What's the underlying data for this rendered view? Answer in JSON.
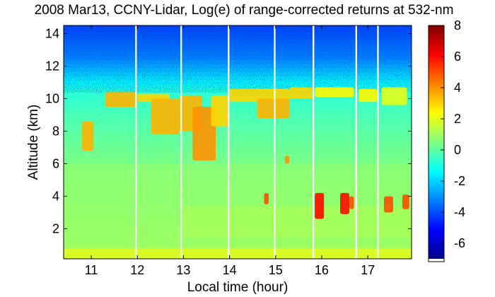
{
  "chart_data": {
    "type": "heatmap",
    "title": "2008 Mar13, CCNY-Lidar, Log(e) of range-corrected returns at 532-nm",
    "xlabel": "Local time (hour)",
    "ylabel": "Altitude (km)",
    "xlim": [
      10.4,
      17.95
    ],
    "ylim": [
      0.15,
      14.5
    ],
    "x_ticks": [
      11,
      12,
      13,
      14,
      15,
      16,
      17
    ],
    "y_ticks": [
      2,
      4,
      6,
      8,
      10,
      12,
      14
    ],
    "colorbar": {
      "range": [
        -7,
        8
      ],
      "ticks": [
        8,
        6,
        4,
        2,
        0,
        -2,
        -4,
        -6
      ],
      "colors": [
        "#00008f",
        "#0000ff",
        "#0080ff",
        "#00ffff",
        "#80ff80",
        "#ffff00",
        "#ff8000",
        "#ff0000",
        "#800000"
      ]
    },
    "data_gaps_hour": [
      11.97,
      12.95,
      13.98,
      14.98,
      15.82,
      16.75,
      17.22
    ],
    "cloud_layers": [
      {
        "x": [
          10.8,
          11.05
        ],
        "y": [
          6.8,
          8.6
        ],
        "value": 3.5
      },
      {
        "x": [
          11.3,
          12.0
        ],
        "y": [
          9.5,
          10.4
        ],
        "value": 3.5
      },
      {
        "x": [
          12.0,
          12.7
        ],
        "y": [
          9.8,
          10.3
        ],
        "value": 3.0
      },
      {
        "x": [
          12.3,
          12.9
        ],
        "y": [
          7.8,
          10.0
        ],
        "value": 3.5
      },
      {
        "x": [
          12.9,
          13.4
        ],
        "y": [
          8.0,
          10.2
        ],
        "value": 3.5
      },
      {
        "x": [
          13.2,
          13.7
        ],
        "y": [
          6.2,
          9.5
        ],
        "value": 4.0
      },
      {
        "x": [
          13.6,
          14.0
        ],
        "y": [
          8.3,
          10.2
        ],
        "value": 3.0
      },
      {
        "x": [
          14.0,
          15.3
        ],
        "y": [
          9.8,
          10.6
        ],
        "value": 3.0
      },
      {
        "x": [
          14.6,
          15.3
        ],
        "y": [
          8.8,
          10.0
        ],
        "value": 3.5
      },
      {
        "x": [
          15.3,
          15.8
        ],
        "y": [
          10.0,
          10.7
        ],
        "value": 3.0
      },
      {
        "x": [
          15.85,
          16.7
        ],
        "y": [
          10.1,
          10.7
        ],
        "value": 2.5
      },
      {
        "x": [
          16.8,
          17.2
        ],
        "y": [
          9.8,
          10.6
        ],
        "value": 2.5
      },
      {
        "x": [
          17.3,
          17.85
        ],
        "y": [
          9.6,
          10.7
        ],
        "value": 2.0
      },
      {
        "x": [
          15.2,
          15.3
        ],
        "y": [
          6.0,
          6.5
        ],
        "value": 4.0
      },
      {
        "x": [
          14.75,
          14.85
        ],
        "y": [
          3.5,
          4.2
        ],
        "value": 5.0
      },
      {
        "x": [
          15.85,
          16.05
        ],
        "y": [
          2.6,
          4.2
        ],
        "value": 6.0
      },
      {
        "x": [
          16.4,
          16.6
        ],
        "y": [
          2.9,
          4.2
        ],
        "value": 6.0
      },
      {
        "x": [
          16.6,
          16.7
        ],
        "y": [
          3.2,
          4.0
        ],
        "value": 5.0
      },
      {
        "x": [
          17.35,
          17.55
        ],
        "y": [
          3.0,
          4.0
        ],
        "value": 5.0
      },
      {
        "x": [
          17.75,
          17.9
        ],
        "y": [
          3.2,
          4.1
        ],
        "value": 5.0
      }
    ],
    "aerosol_layers": [
      {
        "x": [
          10.4,
          17.95
        ],
        "y": [
          0.2,
          0.8
        ],
        "value": 2.5
      },
      {
        "x": [
          13.0,
          17.95
        ],
        "y": [
          1.5,
          3.4
        ],
        "value": 1.2
      },
      {
        "x": [
          10.4,
          17.95
        ],
        "y": [
          0.8,
          6.0
        ],
        "value": 0.8
      }
    ]
  }
}
